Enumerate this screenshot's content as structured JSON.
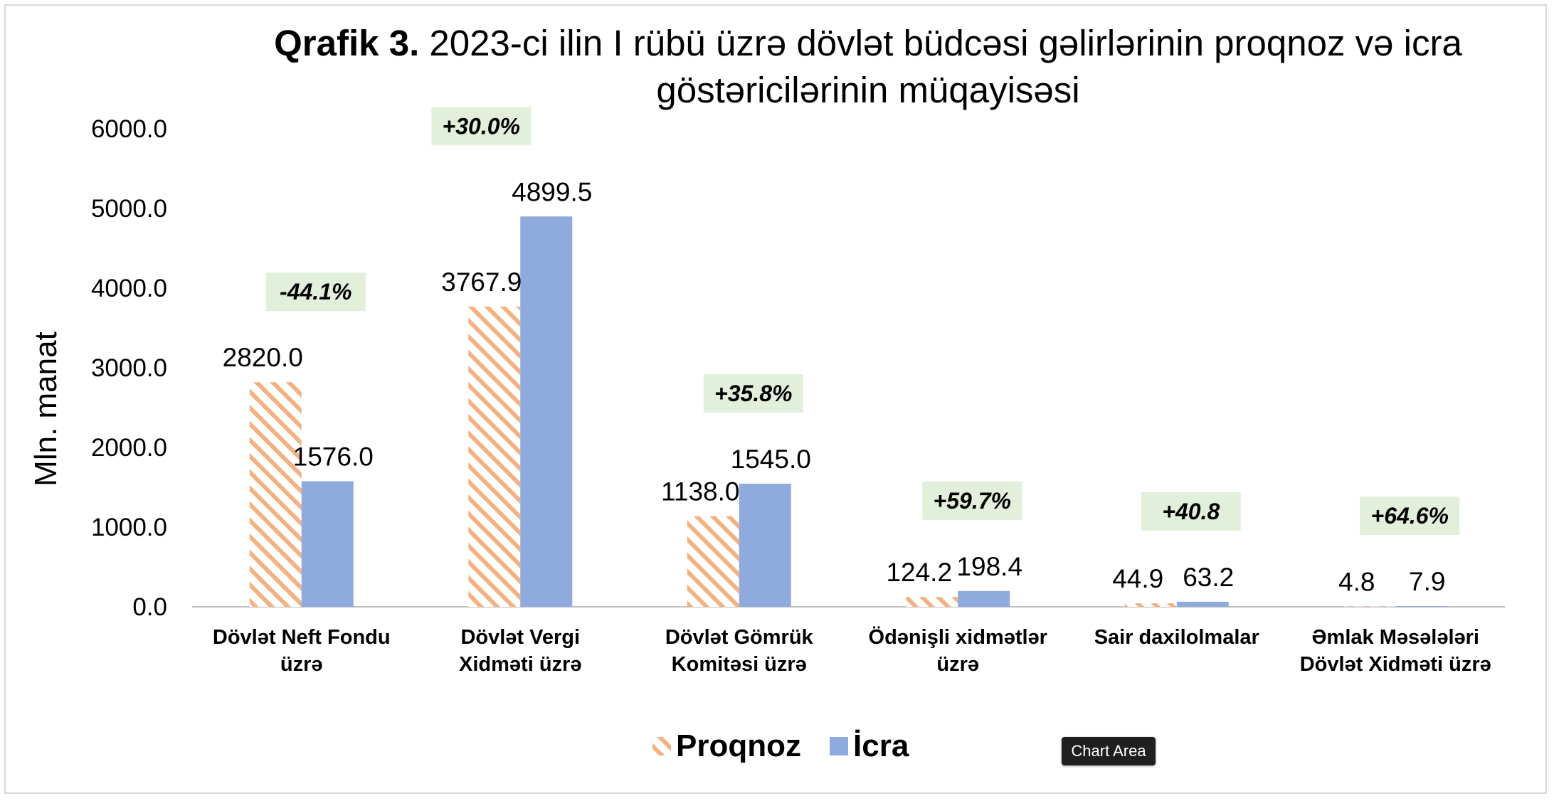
{
  "title_bold": "Qrafik 3.",
  "title_rest": "2023-ci ilin I rübü  üzrə dövlət büdcəsi gəlirlərinin proqnoz və icra göstəricilərinin müqayisəsi",
  "tooltip": "Chart Area",
  "colors": {
    "proqnoz": "#f4b183",
    "icra": "#8faadc",
    "pct_box": "#e2efda",
    "axis": "#bfbfbf"
  },
  "chart_data": {
    "type": "bar",
    "title": "Qrafik 3. 2023-ci ilin I rübü  üzrə dövlət büdcəsi gəlirlərinin proqnoz və icra göstəricilərinin müqayisəsi",
    "ylabel": "Mln. manat",
    "xlabel": "",
    "ylim": [
      0,
      6000
    ],
    "yticks": [
      "0.0",
      "1000.0",
      "2000.0",
      "3000.0",
      "4000.0",
      "5000.0",
      "6000.0"
    ],
    "categories": [
      [
        "Dövlət Neft Fondu",
        "üzrə"
      ],
      [
        "Dövlət Vergi",
        "Xidməti üzrə"
      ],
      [
        "Dövlət Gömrük",
        "Komitəsi üzrə"
      ],
      [
        "Ödənişli xidmətlər",
        "üzrə"
      ],
      [
        "Sair daxilolmalar"
      ],
      [
        "Əmlak Məsələləri",
        "Dövlət Xidməti üzrə"
      ]
    ],
    "series": [
      {
        "name": "Proqnoz",
        "values": [
          2820.0,
          3767.9,
          1138.0,
          124.2,
          44.9,
          4.8
        ],
        "labels": [
          "2820.0",
          "3767.9",
          "1138.0",
          "124.2",
          "44.9",
          "4.8"
        ]
      },
      {
        "name": "İcra",
        "values": [
          1576.0,
          4899.5,
          1545.0,
          198.4,
          63.2,
          7.9
        ],
        "labels": [
          "1576.0",
          "4899.5",
          "1545.0",
          "198.4",
          "63.2",
          "7.9"
        ]
      }
    ],
    "annotations": [
      "-44.1%",
      "+30.0%",
      "+35.8%",
      "+59.7%",
      "+40.8",
      "+64.6%"
    ],
    "legend": {
      "position": "bottom",
      "items": [
        "Proqnoz",
        "İcra"
      ]
    },
    "grid": false
  }
}
